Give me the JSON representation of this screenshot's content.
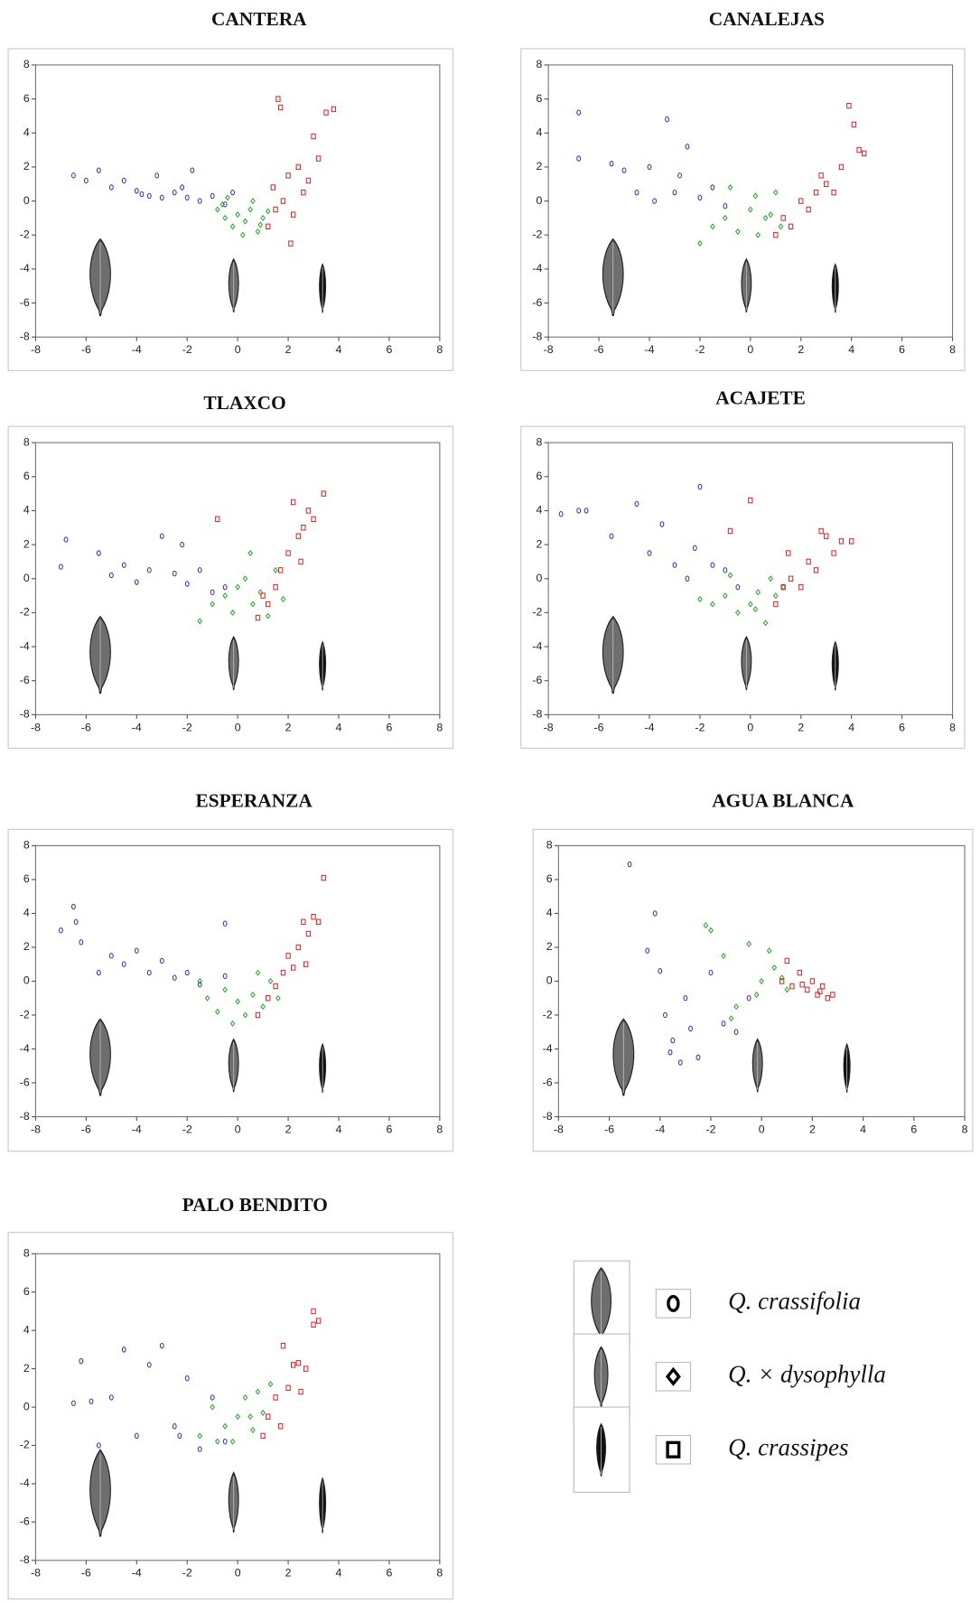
{
  "chart_data": [
    {
      "type": "scatter",
      "title": "CANTERA",
      "xlim": [
        -8,
        8
      ],
      "ylim": [
        -8,
        8
      ],
      "xticks": [
        -8,
        -6,
        -4,
        -2,
        0,
        2,
        4,
        6,
        8
      ],
      "yticks": [
        -8,
        -6,
        -4,
        -2,
        0,
        2,
        4,
        6,
        8
      ],
      "series": [
        {
          "color": "#2a2acc",
          "marker": "circle",
          "x": [
            -6.5,
            -6,
            -5.5,
            -5,
            -4.5,
            -4,
            -3.5,
            -3.2,
            -3,
            -2.5,
            -2,
            -1.8,
            -1.5,
            -1,
            -0.5,
            -0.2,
            -2.2,
            -3.8
          ],
          "values": [
            1.5,
            1.2,
            1.8,
            0.8,
            1.2,
            0.6,
            0.3,
            1.5,
            0.2,
            0.5,
            0.2,
            1.8,
            0,
            0.3,
            -0.2,
            0.5,
            0.8,
            0.4
          ]
        },
        {
          "color": "#2aa52a",
          "marker": "diamond",
          "x": [
            -0.8,
            -0.5,
            -0.2,
            0,
            0.3,
            0.5,
            0.8,
            1,
            -0.4,
            0.2,
            0.6,
            1.2,
            -0.6,
            0.9
          ],
          "values": [
            -0.5,
            -1,
            -1.5,
            -0.8,
            -1.2,
            -0.5,
            -1.8,
            -1,
            0.2,
            -2,
            0,
            -0.6,
            -0.2,
            -1.4
          ]
        },
        {
          "color": "#dd2222",
          "marker": "square",
          "x": [
            1.2,
            1.5,
            1.6,
            1.8,
            2,
            2.2,
            2.4,
            2.6,
            2.8,
            3,
            3.2,
            3.5,
            3.8,
            1.7,
            2.1,
            1.4
          ],
          "values": [
            -1.5,
            -0.5,
            6,
            0,
            1.5,
            -0.8,
            2,
            0.5,
            1.2,
            3.8,
            2.5,
            5.2,
            5.4,
            5.5,
            -2.5,
            0.8
          ]
        }
      ]
    },
    {
      "type": "scatter",
      "title": "CANALEJAS",
      "xlim": [
        -8,
        8
      ],
      "ylim": [
        -8,
        8
      ],
      "xticks": [
        -8,
        -6,
        -4,
        -2,
        0,
        2,
        4,
        6,
        8
      ],
      "yticks": [
        -8,
        -6,
        -4,
        -2,
        0,
        2,
        4,
        6,
        8
      ],
      "series": [
        {
          "color": "#2a2acc",
          "marker": "circle",
          "x": [
            -6.8,
            -6.8,
            -5.5,
            -5,
            -4.5,
            -4,
            -3.3,
            -3,
            -2.5,
            -2,
            -1.5,
            -1,
            -3.8,
            -2.8
          ],
          "values": [
            5.2,
            2.5,
            2.2,
            1.8,
            0.5,
            2,
            4.8,
            0.5,
            3.2,
            0.2,
            0.8,
            -0.3,
            0,
            1.5
          ]
        },
        {
          "color": "#2aa52a",
          "marker": "diamond",
          "x": [
            -2,
            -1.5,
            -1,
            -0.5,
            0,
            0.3,
            0.6,
            1,
            1.2,
            -0.8,
            0.2,
            0.8
          ],
          "values": [
            -2.5,
            -1.5,
            -1,
            -1.8,
            -0.5,
            -2,
            -1,
            0.5,
            -1.5,
            0.8,
            0.3,
            -0.8
          ]
        },
        {
          "color": "#dd2222",
          "marker": "square",
          "x": [
            1,
            1.3,
            1.6,
            2,
            2.3,
            2.6,
            3,
            3.3,
            3.6,
            3.9,
            4.1,
            4.3,
            4.5,
            2.8
          ],
          "values": [
            -2,
            -1,
            -1.5,
            0,
            -0.5,
            0.5,
            1,
            0.5,
            2,
            5.6,
            4.5,
            3,
            2.8,
            1.5
          ]
        }
      ]
    },
    {
      "type": "scatter",
      "title": "TLAXCO",
      "xlim": [
        -8,
        8
      ],
      "ylim": [
        -8,
        8
      ],
      "xticks": [
        -8,
        -6,
        -4,
        -2,
        0,
        2,
        4,
        6,
        8
      ],
      "yticks": [
        -8,
        -6,
        -4,
        -2,
        0,
        2,
        4,
        6,
        8
      ],
      "series": [
        {
          "color": "#2a2acc",
          "marker": "circle",
          "x": [
            -7,
            -6.8,
            -5.5,
            -5,
            -4.5,
            -4,
            -3.5,
            -3,
            -2.5,
            -2,
            -1.5,
            -1,
            -0.5,
            -2.2
          ],
          "values": [
            0.7,
            2.3,
            1.5,
            0.2,
            0.8,
            -0.2,
            0.5,
            2.5,
            0.3,
            -0.3,
            0.5,
            -0.8,
            -0.5,
            2
          ]
        },
        {
          "color": "#2aa52a",
          "marker": "diamond",
          "x": [
            -1,
            -0.5,
            -0.2,
            0,
            0.3,
            0.6,
            0.9,
            1.2,
            1.5,
            1.8,
            -1.5,
            0.5
          ],
          "values": [
            -1.5,
            -1,
            -2,
            -0.5,
            0,
            -1.5,
            -0.8,
            -2.2,
            0.5,
            -1.2,
            -2.5,
            1.5
          ]
        },
        {
          "color": "#dd2222",
          "marker": "square",
          "x": [
            -0.8,
            0.8,
            1.2,
            1.5,
            1.7,
            2,
            2.2,
            2.4,
            2.6,
            2.8,
            3,
            3.4,
            1,
            2.5
          ],
          "values": [
            3.5,
            -2.3,
            -1.5,
            -0.5,
            0.5,
            1.5,
            4.5,
            2.5,
            3,
            4,
            3.5,
            5,
            -1,
            1
          ]
        }
      ]
    },
    {
      "type": "scatter",
      "title": "ACAJETE",
      "xlim": [
        -8,
        8
      ],
      "ylim": [
        -8,
        8
      ],
      "xticks": [
        -8,
        -6,
        -4,
        -2,
        0,
        2,
        4,
        6,
        8
      ],
      "yticks": [
        -8,
        -6,
        -4,
        -2,
        0,
        2,
        4,
        6,
        8
      ],
      "series": [
        {
          "color": "#2a2acc",
          "marker": "circle",
          "x": [
            -7.5,
            -6.8,
            -6.5,
            -5.5,
            -4.5,
            -4,
            -3.5,
            -3,
            -2.5,
            -2,
            -1.5,
            -1,
            -0.5,
            -2.2
          ],
          "values": [
            3.8,
            4,
            4,
            2.5,
            4.4,
            1.5,
            3.2,
            0.8,
            0,
            5.4,
            0.8,
            0.5,
            -0.5,
            1.8
          ]
        },
        {
          "color": "#2aa52a",
          "marker": "diamond",
          "x": [
            -1.5,
            -1,
            -0.5,
            0,
            0.3,
            0.6,
            1,
            1.3,
            -0.8,
            0.2,
            0.8,
            -2
          ],
          "values": [
            -1.5,
            -1,
            -2,
            -1.5,
            -0.8,
            -2.6,
            -1,
            -0.5,
            0.2,
            -1.8,
            0,
            -1.2
          ]
        },
        {
          "color": "#dd2222",
          "marker": "square",
          "x": [
            -0.8,
            0,
            1,
            1.3,
            1.6,
            2,
            2.3,
            2.6,
            3,
            3.3,
            3.6,
            4,
            1.5,
            2.8
          ],
          "values": [
            2.8,
            4.6,
            -1.5,
            -0.5,
            0,
            -0.5,
            1,
            0.5,
            2.5,
            1.5,
            2.2,
            2.2,
            1.5,
            2.8
          ]
        }
      ]
    },
    {
      "type": "scatter",
      "title": "ESPERANZA",
      "xlim": [
        -8,
        8
      ],
      "ylim": [
        -8,
        8
      ],
      "xticks": [
        -8,
        -6,
        -4,
        -2,
        0,
        2,
        4,
        6,
        8
      ],
      "yticks": [
        -8,
        -6,
        -4,
        -2,
        0,
        2,
        4,
        6,
        8
      ],
      "series": [
        {
          "color": "#2a2acc",
          "marker": "circle",
          "x": [
            -7,
            -6.5,
            -6.4,
            -6.2,
            -5.5,
            -5,
            -4.5,
            -4,
            -3.5,
            -3,
            -2.5,
            -2,
            -1.5,
            -0.5,
            -0.5
          ],
          "values": [
            3,
            4.4,
            3.5,
            2.3,
            0.5,
            1.5,
            1,
            1.8,
            0.5,
            1.2,
            0.2,
            0.5,
            -0.2,
            3.4,
            0.3
          ]
        },
        {
          "color": "#2aa52a",
          "marker": "diamond",
          "x": [
            -1.2,
            -0.8,
            -0.5,
            0,
            0.3,
            0.6,
            1,
            1.3,
            -0.2,
            0.8,
            1.6,
            -1.5
          ],
          "values": [
            -1,
            -1.8,
            -0.5,
            -1.2,
            -2,
            -0.8,
            -1.5,
            0,
            -2.5,
            0.5,
            -1,
            0
          ]
        },
        {
          "color": "#dd2222",
          "marker": "square",
          "x": [
            0.8,
            1.2,
            1.5,
            1.8,
            2,
            2.2,
            2.4,
            2.6,
            2.8,
            3,
            3.2,
            3.4,
            2.7
          ],
          "values": [
            -2,
            -1,
            -0.3,
            0.5,
            1.5,
            0.8,
            2,
            3.5,
            2.8,
            3.8,
            3.5,
            6.1,
            1
          ]
        }
      ]
    },
    {
      "type": "scatter",
      "title": "AGUA BLANCA",
      "xlim": [
        -8,
        8
      ],
      "ylim": [
        -8,
        8
      ],
      "xticks": [
        -8,
        -6,
        -4,
        -2,
        0,
        2,
        4,
        6,
        8
      ],
      "yticks": [
        -8,
        -6,
        -4,
        -2,
        0,
        2,
        4,
        6,
        8
      ],
      "series": [
        {
          "color": "#2a2acc",
          "marker": "circle",
          "x": [
            -5.2,
            -4.5,
            -4.2,
            -4,
            -3.8,
            -3.5,
            -3.2,
            -3,
            -2.5,
            -2,
            -1.5,
            -1,
            -0.5,
            -2.8,
            -3.6
          ],
          "values": [
            6.9,
            1.8,
            4,
            0.6,
            -2,
            -3.5,
            -4.8,
            -1,
            -4.5,
            0.5,
            -2.5,
            -3,
            -1,
            -2.8,
            -4.2
          ]
        },
        {
          "color": "#2aa52a",
          "marker": "diamond",
          "x": [
            -2.2,
            -2,
            -1.5,
            -1,
            -0.5,
            0,
            0.5,
            1,
            -1.2,
            0.3,
            0.8,
            -0.2
          ],
          "values": [
            3.3,
            3,
            1.5,
            -1.5,
            2.2,
            0,
            0.8,
            -0.5,
            -2.2,
            1.8,
            0.2,
            -0.8
          ]
        },
        {
          "color": "#dd2222",
          "marker": "square",
          "x": [
            0.8,
            1.2,
            1.5,
            1.8,
            2,
            2.2,
            2.4,
            2.6,
            2.8,
            1,
            1.6,
            2.3
          ],
          "values": [
            0,
            -0.3,
            0.5,
            -0.5,
            0,
            -0.8,
            -0.3,
            -1,
            -0.8,
            1.2,
            -0.2,
            -0.6
          ]
        }
      ]
    },
    {
      "type": "scatter",
      "title": "PALO BENDITO",
      "xlim": [
        -8,
        8
      ],
      "ylim": [
        -8,
        8
      ],
      "xticks": [
        -8,
        -6,
        -4,
        -2,
        0,
        2,
        4,
        6,
        8
      ],
      "yticks": [
        -8,
        -6,
        -4,
        -2,
        0,
        2,
        4,
        6,
        8
      ],
      "series": [
        {
          "color": "#2a2acc",
          "marker": "circle",
          "x": [
            -6.5,
            -6.2,
            -5.8,
            -5.5,
            -5,
            -4.5,
            -4,
            -3.5,
            -3,
            -2.5,
            -2,
            -1.5,
            -1,
            -0.5,
            -2.3
          ],
          "values": [
            0.2,
            2.4,
            0.3,
            -2,
            0.5,
            3,
            -1.5,
            2.2,
            3.2,
            -1,
            1.5,
            -2.2,
            0.5,
            -1.8,
            -1.5
          ]
        },
        {
          "color": "#2aa52a",
          "marker": "diamond",
          "x": [
            -1.5,
            -1,
            -0.5,
            0,
            0.3,
            0.6,
            1,
            1.3,
            -0.2,
            0.8,
            0.5,
            -0.8
          ],
          "values": [
            -1.5,
            0,
            -1,
            -0.5,
            0.5,
            -1.2,
            -0.3,
            1.2,
            -1.8,
            0.8,
            -0.5,
            -1.8
          ]
        },
        {
          "color": "#dd2222",
          "marker": "square",
          "x": [
            1,
            1.2,
            1.5,
            1.7,
            2,
            2.2,
            2.5,
            2.7,
            3,
            3.2,
            1.8,
            2.4,
            3
          ],
          "values": [
            -1.5,
            -0.5,
            0.5,
            -1,
            1,
            2.2,
            0.8,
            2,
            4.3,
            4.5,
            3.2,
            2.3,
            5
          ]
        }
      ]
    }
  ],
  "legend": [
    {
      "name": "Q. crassifolia",
      "marker": "circle"
    },
    {
      "name": "Q. × dysophylla",
      "marker": "diamond"
    },
    {
      "name": "Q. crassipes",
      "marker": "square"
    }
  ]
}
